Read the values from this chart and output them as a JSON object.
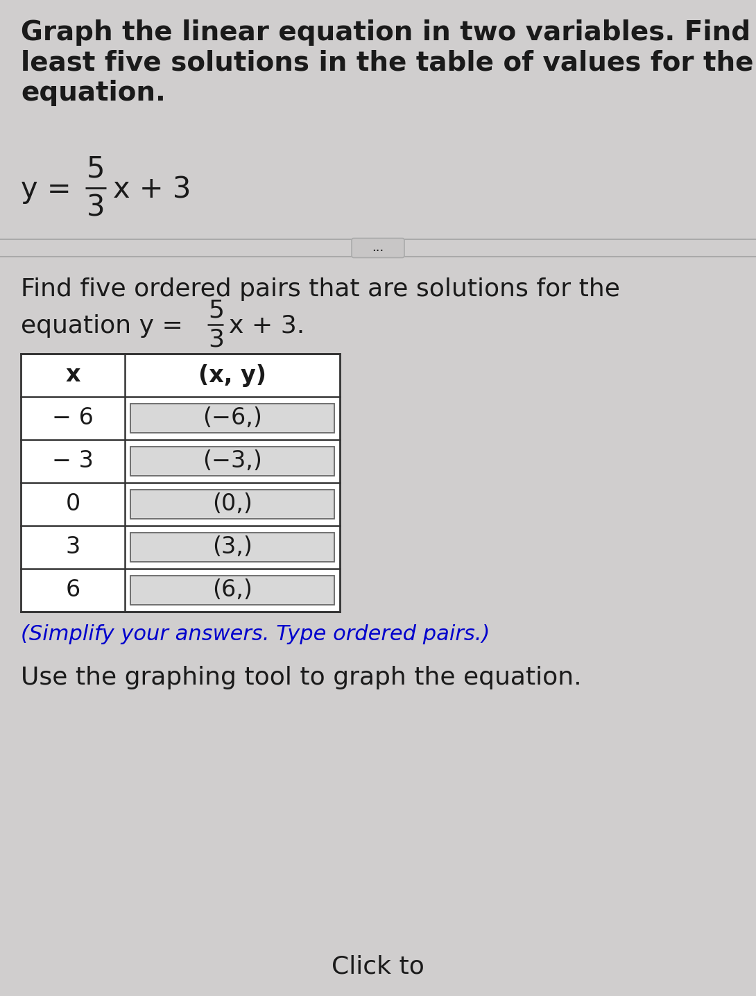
{
  "background_color": "#d0cece",
  "title_line1": "Graph the linear equation in two variables. Find at",
  "title_line2": "least five solutions in the table of values for the",
  "title_line3": "equation.",
  "find_text": "Find five ordered pairs that are solutions for the",
  "eq_label2": "equation y =",
  "eq_suffix2": "x + 3.",
  "table_x_values": [
    "− 6",
    "− 3",
    "0",
    "3",
    "6"
  ],
  "table_xy_values": [
    "(−6,)",
    "(−3,)",
    "(0,)",
    "(3,)",
    "(6,)"
  ],
  "table_header_x": "x",
  "table_header_xy": "(x, y)",
  "simplify_text": "(Simplify your answers. Type ordered pairs.)",
  "use_text": "Use the graphing tool to graph the equation.",
  "click_text": "Click to",
  "text_color": "#1a1a1a",
  "blue_color": "#0000cc",
  "table_border": "#333333",
  "input_bg": "#d8d8d8",
  "input_border": "#666666"
}
